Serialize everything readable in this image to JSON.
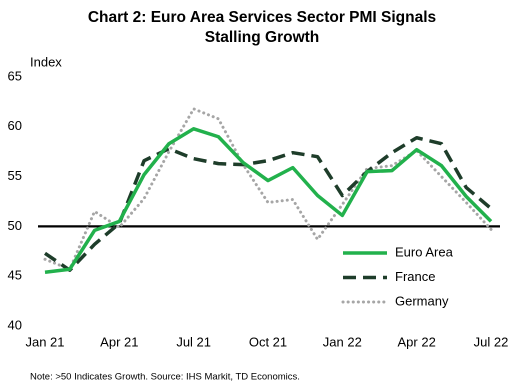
{
  "chart_data": {
    "type": "line",
    "title": "Chart 2: Euro Area Services Sector PMI Signals",
    "subtitle": "Stalling Growth",
    "y_label": "Index",
    "note": "Note: >50 Indicates Growth. Source: IHS Markit, TD Economics.",
    "categories": [
      "Jan 21",
      null,
      null,
      "Apr 21",
      null,
      null,
      "Jul 21",
      null,
      null,
      "Oct 21",
      null,
      null,
      "Jan 22",
      null,
      null,
      "Apr 22",
      null,
      null,
      "Jul 22"
    ],
    "series": [
      {
        "name": "Euro Area",
        "color": "#22b14c",
        "style": "solid",
        "values": [
          45.4,
          45.7,
          49.6,
          50.5,
          55.2,
          58.3,
          59.8,
          59.0,
          56.4,
          54.6,
          55.9,
          53.1,
          51.1,
          55.5,
          55.6,
          57.7,
          56.1,
          53.0,
          50.5
        ]
      },
      {
        "name": "France",
        "color": "#1e3d2a",
        "style": "dashed",
        "values": [
          47.3,
          45.6,
          48.2,
          50.3,
          56.6,
          57.8,
          56.8,
          56.3,
          56.2,
          56.6,
          57.4,
          57.0,
          53.1,
          55.5,
          57.4,
          58.9,
          58.3,
          53.9,
          51.8
        ]
      },
      {
        "name": "Germany",
        "color": "#a6a6a6",
        "style": "dotted",
        "values": [
          46.7,
          45.7,
          51.5,
          49.9,
          52.8,
          57.5,
          61.8,
          60.8,
          56.2,
          52.4,
          52.7,
          48.7,
          52.2,
          55.8,
          56.1,
          57.6,
          55.0,
          52.4,
          49.7
        ]
      }
    ],
    "reference_line": 50,
    "ylim": [
      40,
      65
    ],
    "yticks": [
      40,
      45,
      50,
      55,
      60,
      65
    ],
    "grid": false,
    "legend": "lower right"
  }
}
